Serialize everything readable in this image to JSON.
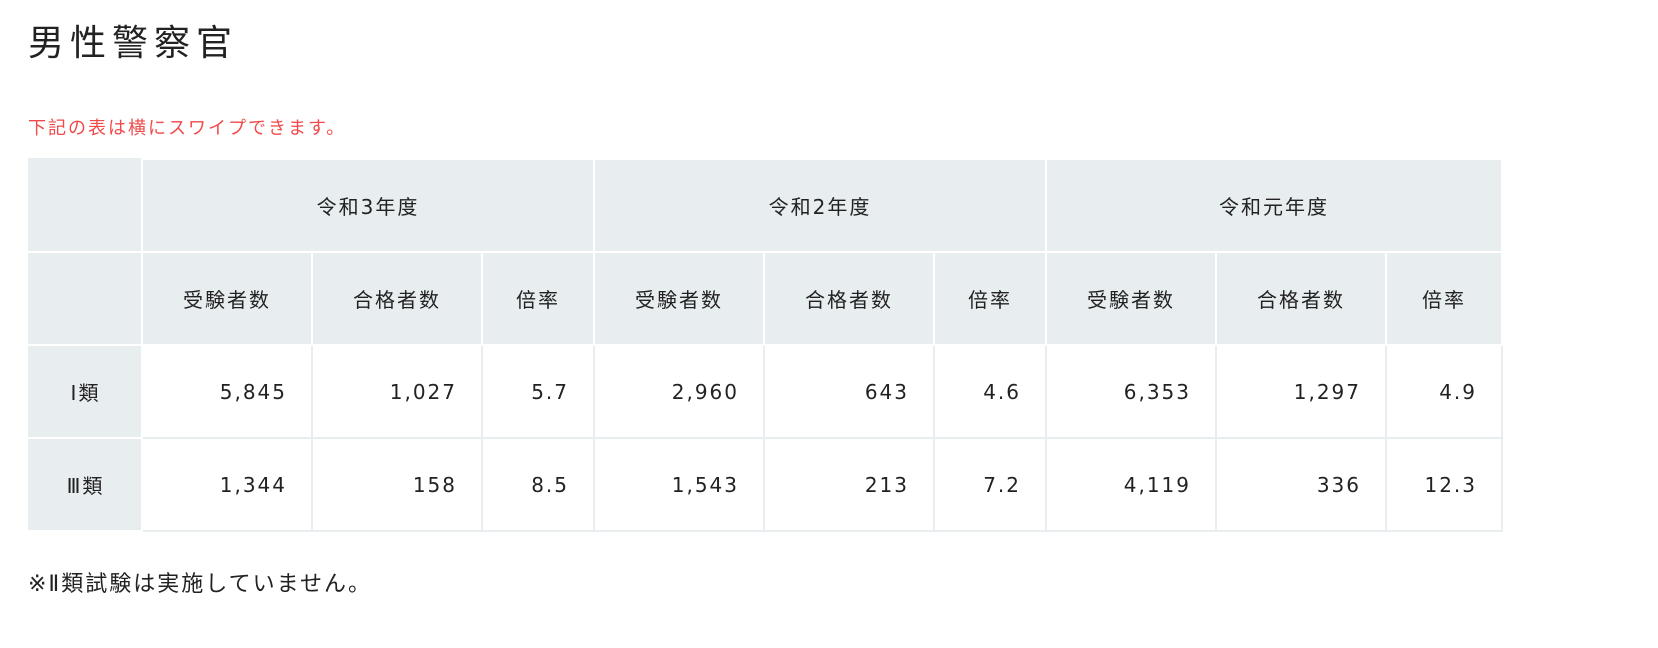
{
  "title": "男性警察官",
  "swipe_note": "下記の表は横にスワイプできます。",
  "years": [
    "令和3年度",
    "令和2年度",
    "令和元年度"
  ],
  "subheaders": [
    "受験者数",
    "合格者数",
    "倍率"
  ],
  "rows": [
    {
      "label": "Ⅰ類",
      "values": [
        "5,845",
        "1,027",
        "5.7",
        "2,960",
        "643",
        "4.6",
        "6,353",
        "1,297",
        "4.9"
      ]
    },
    {
      "label": "Ⅲ類",
      "values": [
        "1,344",
        "158",
        "8.5",
        "1,543",
        "213",
        "7.2",
        "4,119",
        "336",
        "12.3"
      ]
    }
  ],
  "footnote": "※Ⅱ類試験は実施していません。",
  "colors": {
    "header_bg": "#e8edf0",
    "note": "#f04a4a"
  }
}
